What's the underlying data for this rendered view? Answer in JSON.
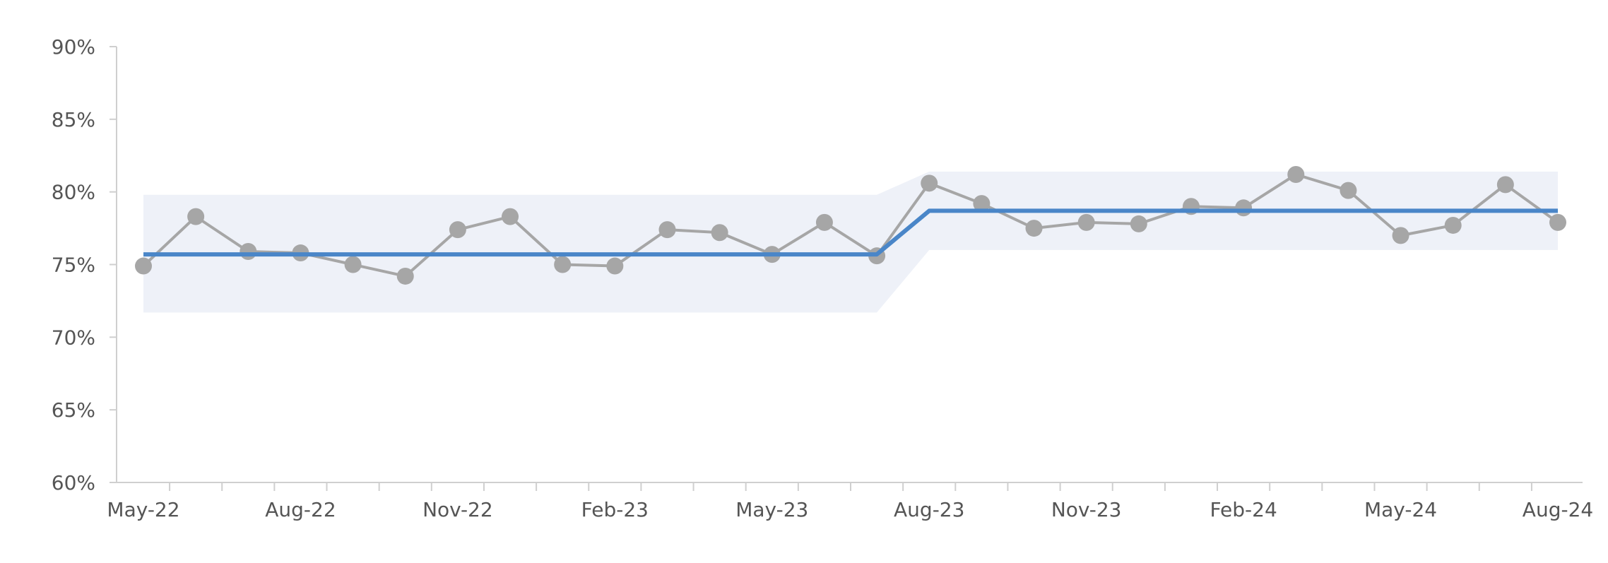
{
  "chart_data": {
    "type": "line",
    "x": [
      "May-22",
      "Jun-22",
      "Jul-22",
      "Aug-22",
      "Sep-22",
      "Oct-22",
      "Nov-22",
      "Dec-22",
      "Jan-23",
      "Feb-23",
      "Mar-23",
      "Apr-23",
      "May-23",
      "Jun-23",
      "Jul-23",
      "Aug-23",
      "Sep-23",
      "Oct-23",
      "Nov-23",
      "Dec-23",
      "Jan-24",
      "Feb-24",
      "Mar-24",
      "Apr-24",
      "May-24",
      "Jun-24",
      "Jul-24",
      "Aug-24"
    ],
    "x_tick_labels": [
      "May-22",
      "Aug-22",
      "Nov-22",
      "Feb-23",
      "May-23",
      "Aug-23",
      "Nov-23",
      "Feb-24",
      "May-24",
      "Aug-24"
    ],
    "y_tick_labels": [
      "60%",
      "65%",
      "70%",
      "75%",
      "80%",
      "85%",
      "90%"
    ],
    "ylim": [
      60,
      90
    ],
    "y_ticks": [
      60,
      65,
      70,
      75,
      80,
      85,
      90
    ],
    "title": "",
    "xlabel": "",
    "ylabel": "",
    "grid": false,
    "series": [
      {
        "kind": "line-markers",
        "color": "#a6a6a6",
        "values": [
          74.9,
          78.3,
          75.9,
          75.8,
          75.0,
          74.2,
          77.4,
          78.3,
          75.0,
          74.9,
          77.4,
          77.2,
          75.7,
          77.9,
          75.6,
          80.6,
          79.2,
          77.5,
          77.9,
          77.8,
          79.0,
          78.9,
          81.2,
          80.1,
          77.0,
          77.7,
          80.5,
          77.9
        ]
      },
      {
        "kind": "center-line",
        "color": "#4a86c8",
        "values": [
          75.7,
          75.7,
          75.7,
          75.7,
          75.7,
          75.7,
          75.7,
          75.7,
          75.7,
          75.7,
          75.7,
          75.7,
          75.7,
          75.7,
          75.7,
          78.7,
          78.7,
          78.7,
          78.7,
          78.7,
          78.7,
          78.7,
          78.7,
          78.7,
          78.7,
          78.7,
          78.7,
          78.7
        ]
      },
      {
        "kind": "band",
        "color": "#eef1f8",
        "upper": [
          79.8,
          79.8,
          79.8,
          79.8,
          79.8,
          79.8,
          79.8,
          79.8,
          79.8,
          79.8,
          79.8,
          79.8,
          79.8,
          79.8,
          79.8,
          81.4,
          81.4,
          81.4,
          81.4,
          81.4,
          81.4,
          81.4,
          81.4,
          81.4,
          81.4,
          81.4,
          81.4,
          81.4
        ],
        "lower": [
          71.7,
          71.7,
          71.7,
          71.7,
          71.7,
          71.7,
          71.7,
          71.7,
          71.7,
          71.7,
          71.7,
          71.7,
          71.7,
          71.7,
          71.7,
          76.0,
          76.0,
          76.0,
          76.0,
          76.0,
          76.0,
          76.0,
          76.0,
          76.0,
          76.0,
          76.0,
          76.0,
          76.0
        ]
      }
    ]
  }
}
